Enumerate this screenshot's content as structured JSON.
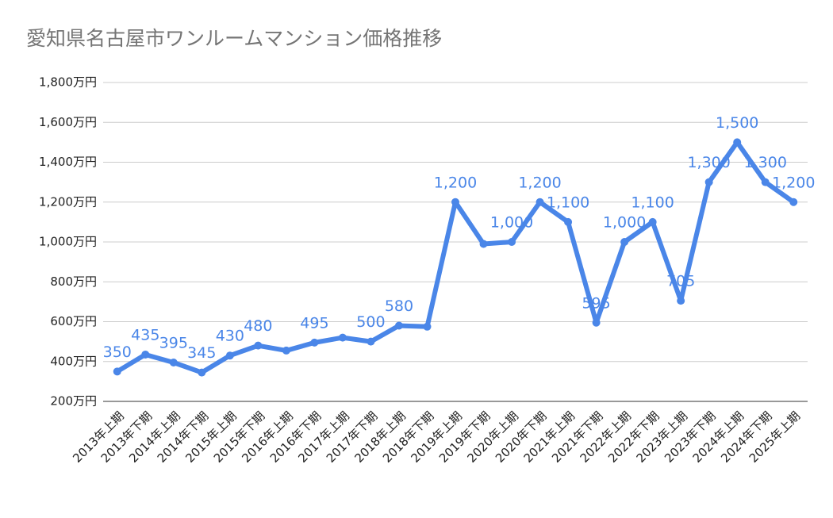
{
  "chart_data": {
    "type": "line",
    "title": "愛知県名古屋市ワンルームマンション価格推移",
    "categories": [
      "2013年上期",
      "2013年下期",
      "2014年上期",
      "2014年下期",
      "2015年上期",
      "2015年下期",
      "2016年上期",
      "2016年下期",
      "2017年上期",
      "2017年下期",
      "2018年上期",
      "2018年下期",
      "2019年上期",
      "2019年下期",
      "2020年上期",
      "2020年下期",
      "2021年上期",
      "2021年下期",
      "2022年上期",
      "2022年下期",
      "2023年上期",
      "2023年下期",
      "2024年上期",
      "2024年下期",
      "2025年上期"
    ],
    "series": [
      {
        "color": "#4a86e8",
        "values": [
          350,
          435,
          395,
          345,
          430,
          480,
          455,
          495,
          520,
          500,
          580,
          575,
          1200,
          990,
          1000,
          1200,
          1100,
          595,
          1000,
          1100,
          705,
          1300,
          1500,
          1300,
          1200
        ],
        "value_labels": [
          "350",
          "435",
          "395",
          "345",
          "430",
          "480",
          null,
          "495",
          null,
          "500",
          "580",
          null,
          "1,200",
          null,
          "1,000",
          "1,200",
          "1,100",
          "595",
          "1,000",
          "1,100",
          "705",
          "1,300",
          "1,500",
          "1,300",
          "1,200"
        ]
      }
    ],
    "ylim": [
      200,
      1800
    ],
    "yticks": [
      {
        "value": 200,
        "label": "200万円"
      },
      {
        "value": 400,
        "label": "400万円"
      },
      {
        "value": 600,
        "label": "600万円"
      },
      {
        "value": 800,
        "label": "800万円"
      },
      {
        "value": 1000,
        "label": "1,000万円"
      },
      {
        "value": 1200,
        "label": "1,200万円"
      },
      {
        "value": 1400,
        "label": "1,400万円"
      },
      {
        "value": 1600,
        "label": "1,600万円"
      },
      {
        "value": 1800,
        "label": "1,800万円"
      }
    ],
    "grid": true
  }
}
